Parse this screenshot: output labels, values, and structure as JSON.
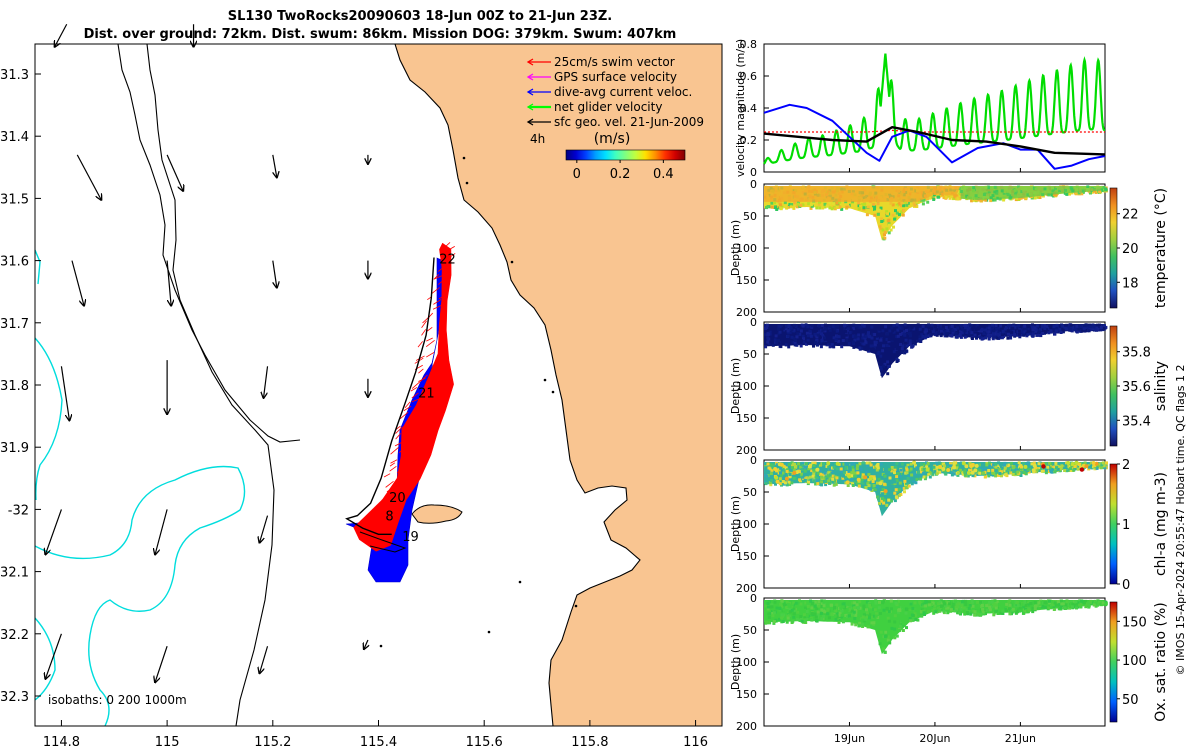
{
  "chart_data": [
    {
      "type": "map",
      "title_line1": "SL130 TwoRocks20090603 18-Jun 00Z to 21-Jun 23Z.",
      "title_line2": "Dist. over ground: 72km. Dist. swum: 86km. Mission DOG: 379km. Swum: 407km",
      "xlim": [
        114.75,
        116.05
      ],
      "ylim": [
        -32.33,
        -31.25
      ],
      "xticks": [
        114.8,
        115,
        115.2,
        115.4,
        115.6,
        115.8,
        116
      ],
      "xtick_labels": [
        "114.8",
        "115",
        "115.2",
        "115.4",
        "115.6",
        "115.8",
        "116"
      ],
      "yticks": [
        -31.3,
        -31.4,
        -31.5,
        -31.6,
        -31.7,
        -31.8,
        -31.9,
        -32.0,
        -32.1,
        -32.2,
        -32.3
      ],
      "ytick_labels": [
        "31.3",
        "31.4",
        "31.5",
        "31.6",
        "31.7",
        "31.8",
        "31.9",
        "-32",
        "32.1",
        "32.2",
        "32.3"
      ],
      "legend": [
        {
          "label": "25cm/s swim vector",
          "color": "#ff0000"
        },
        {
          "label": "GPS surface velocity",
          "color": "#ff00ff"
        },
        {
          "label": "dive-avg current veloc.",
          "color": "#0000ff"
        },
        {
          "label": "net glider velocity",
          "color": "#00ff00"
        },
        {
          "label": "sfc geo. vel. 21-Jun-2009",
          "color": "#000000"
        }
      ],
      "interval_label": "4h",
      "colorbar": {
        "label": "(m/s)",
        "ticks": [
          0,
          0.2,
          0.4
        ],
        "tick_labels": [
          "0",
          "0.2",
          "0.4"
        ],
        "range": [
          -0.05,
          0.5
        ]
      },
      "isobath_label": "isobaths: 0   200  1000m",
      "day_labels": [
        {
          "text": "22",
          "lon": 115.515,
          "lat": -31.597
        },
        {
          "text": "21",
          "lon": 115.475,
          "lat": -31.812
        },
        {
          "text": "20",
          "lon": 115.42,
          "lat": -31.98
        },
        {
          "text": "8",
          "lon": 115.413,
          "lat": -32.01
        },
        {
          "text": "19",
          "lon": 115.445,
          "lat": -32.043
        }
      ],
      "track": [
        [
          115.505,
          -31.595
        ],
        [
          115.5,
          -31.66
        ],
        [
          115.49,
          -31.72
        ],
        [
          115.47,
          -31.78
        ],
        [
          115.45,
          -31.83
        ],
        [
          115.425,
          -31.89
        ],
        [
          115.405,
          -31.95
        ],
        [
          115.385,
          -31.99
        ],
        [
          115.36,
          -32.01
        ],
        [
          115.34,
          -32.015
        ],
        [
          115.37,
          -32.03
        ],
        [
          115.4,
          -32.04
        ],
        [
          115.425,
          -32.04
        ]
      ],
      "geo_vectors": [
        [
          114.81,
          -31.22,
          -0.03,
          -0.05
        ],
        [
          115.05,
          -31.22,
          0.0,
          -0.05
        ],
        [
          114.83,
          -31.43,
          0.06,
          -0.1
        ],
        [
          115.0,
          -31.43,
          0.04,
          -0.08
        ],
        [
          115.2,
          -31.43,
          0.01,
          -0.05
        ],
        [
          115.38,
          -31.43,
          0.0,
          -0.02
        ],
        [
          114.82,
          -31.6,
          0.03,
          -0.1
        ],
        [
          115.0,
          -31.6,
          0.01,
          -0.1
        ],
        [
          115.2,
          -31.6,
          0.01,
          -0.06
        ],
        [
          115.38,
          -31.6,
          0.0,
          -0.04
        ],
        [
          114.8,
          -31.77,
          0.02,
          -0.12
        ],
        [
          115.0,
          -31.76,
          0.0,
          -0.12
        ],
        [
          115.19,
          -31.77,
          -0.01,
          -0.07
        ],
        [
          115.38,
          -31.79,
          0.0,
          -0.04
        ],
        [
          114.8,
          -32.0,
          -0.04,
          -0.1
        ],
        [
          115.0,
          -32.0,
          -0.03,
          -0.1
        ],
        [
          115.19,
          -32.01,
          -0.02,
          -0.06
        ],
        [
          114.8,
          -32.2,
          -0.04,
          -0.1
        ],
        [
          115.0,
          -32.22,
          -0.03,
          -0.08
        ],
        [
          115.19,
          -32.22,
          -0.02,
          -0.06
        ],
        [
          115.38,
          -32.21,
          -0.01,
          -0.02
        ]
      ]
    },
    {
      "type": "line",
      "ylabel": "velocity magnitude (m/s)",
      "xlim": [
        18.0,
        21.99
      ],
      "ylim": [
        0,
        0.8
      ],
      "yticks": [
        0,
        0.2,
        0.4,
        0.6,
        0.8
      ],
      "ytick_labels": [
        "0",
        "0.2",
        "0.4",
        "0.6",
        "0.8"
      ],
      "series": [
        {
          "name": "net glider velocity",
          "color": "#00dd00",
          "x": [
            18.0,
            18.1,
            18.25,
            18.5,
            18.7,
            18.9,
            19.1,
            19.3,
            19.4,
            19.6,
            19.8,
            20.0,
            20.2,
            20.4,
            20.6,
            20.8,
            21.0,
            21.2,
            21.4,
            21.6,
            21.8,
            21.99
          ],
          "y": [
            0.04,
            0.08,
            0.12,
            0.18,
            0.2,
            0.24,
            0.28,
            0.36,
            0.74,
            0.3,
            0.3,
            0.34,
            0.38,
            0.42,
            0.45,
            0.48,
            0.52,
            0.56,
            0.6,
            0.64,
            0.68,
            0.66
          ]
        },
        {
          "name": "dive-avg current veloc.",
          "color": "#0000ff",
          "x": [
            18.0,
            18.3,
            18.5,
            18.8,
            19.0,
            19.2,
            19.35,
            19.5,
            19.7,
            19.9,
            20.2,
            20.5,
            20.8,
            21.0,
            21.2,
            21.4,
            21.6,
            21.8,
            21.99
          ],
          "y": [
            0.37,
            0.42,
            0.4,
            0.32,
            0.22,
            0.12,
            0.07,
            0.22,
            0.26,
            0.22,
            0.06,
            0.15,
            0.18,
            0.14,
            0.14,
            0.02,
            0.04,
            0.08,
            0.1
          ]
        },
        {
          "name": "sfc geo. vel.",
          "color": "#000000",
          "x": [
            18.0,
            18.4,
            18.8,
            19.2,
            19.5,
            19.8,
            20.2,
            20.6,
            21.0,
            21.4,
            21.99
          ],
          "y": [
            0.24,
            0.22,
            0.2,
            0.19,
            0.28,
            0.25,
            0.2,
            0.19,
            0.16,
            0.12,
            0.11
          ]
        },
        {
          "name": "swim vector",
          "color": "#ff0000",
          "x": [
            18.0,
            19.2,
            19.5,
            19.8,
            21.99
          ],
          "y": [
            0.25,
            0.25,
            0.26,
            0.25,
            0.25
          ]
        }
      ]
    },
    {
      "type": "heatmap",
      "variable": "temperature",
      "colorbar_label": "temperature (°C)",
      "ylabel": "Depth (m)",
      "yticks": [
        0,
        50,
        100,
        150,
        200
      ],
      "colorbar_ticks": [
        18,
        20,
        22
      ],
      "colorbar_range": [
        16.5,
        23.5
      ],
      "bottom_depth_profile": [
        [
          18.0,
          38
        ],
        [
          18.5,
          36
        ],
        [
          19.0,
          38
        ],
        [
          19.3,
          50
        ],
        [
          19.38,
          88
        ],
        [
          19.5,
          65
        ],
        [
          19.7,
          38
        ],
        [
          20.0,
          20
        ],
        [
          20.5,
          25
        ],
        [
          21.0,
          22
        ],
        [
          21.5,
          15
        ],
        [
          21.99,
          10
        ]
      ]
    },
    {
      "type": "heatmap",
      "variable": "salinity",
      "colorbar_label": "salinity",
      "ylabel": "Depth (m)",
      "yticks": [
        0,
        50,
        100,
        150,
        200
      ],
      "colorbar_ticks": [
        35.4,
        35.6,
        35.8
      ],
      "colorbar_range": [
        35.25,
        35.95
      ]
    },
    {
      "type": "heatmap",
      "variable": "chl-a",
      "colorbar_label": "chl-a (mg m-3)",
      "ylabel": "Depth (m)",
      "yticks": [
        0,
        50,
        100,
        150,
        200
      ],
      "colorbar_ticks": [
        0,
        1,
        2
      ],
      "colorbar_range": [
        0,
        2
      ]
    },
    {
      "type": "heatmap",
      "variable": "oxygen",
      "colorbar_label": "Ox. sat. ratio (%)",
      "ylabel": "Depth (m)",
      "yticks": [
        0,
        50,
        100,
        150,
        200
      ],
      "colorbar_ticks": [
        50,
        100,
        150
      ],
      "colorbar_range": [
        20,
        175
      ]
    }
  ],
  "time_axis": {
    "ticks": [
      19,
      20,
      21
    ],
    "tick_labels": [
      "19Jun",
      "20Jun",
      "21Jun"
    ]
  },
  "side_caption": "© IMOS 15-Apr-2024 20:55:47 Hobart time. QC flags 1  2",
  "colors": {
    "land": "#f9c591",
    "coast": "#000000",
    "isobath200": "#000000",
    "isobath1000": "#00dddd",
    "glider_blue": "#0000ff",
    "glider_red": "#ff0000"
  }
}
